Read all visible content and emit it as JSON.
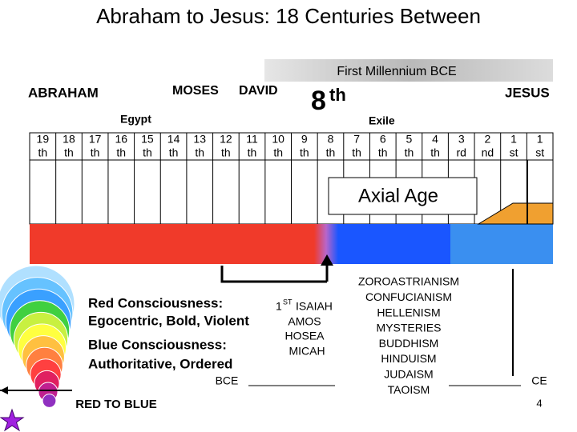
{
  "title": "Abraham to Jesus: 18 Centuries Between",
  "banner": "First Millennium BCE",
  "figures": {
    "abraham": "ABRAHAM",
    "moses": "MOSES",
    "david": "DAVID",
    "eighth": {
      "number": "8",
      "suffix": "th"
    },
    "jesus": "JESUS",
    "egypt": "Egypt",
    "exile": "Exile"
  },
  "centuries": [
    {
      "number": "19",
      "suffix": "th"
    },
    {
      "number": "18",
      "suffix": "th"
    },
    {
      "number": "17",
      "suffix": "th"
    },
    {
      "number": "16",
      "suffix": "th"
    },
    {
      "number": "15",
      "suffix": "th"
    },
    {
      "number": "14",
      "suffix": "th"
    },
    {
      "number": "13",
      "suffix": "th"
    },
    {
      "number": "12",
      "suffix": "th"
    },
    {
      "number": "11",
      "suffix": "th"
    },
    {
      "number": "10",
      "suffix": "th"
    },
    {
      "number": "9",
      "suffix": "th"
    },
    {
      "number": "8",
      "suffix": "th"
    },
    {
      "number": "7",
      "suffix": "th"
    },
    {
      "number": "6",
      "suffix": "th"
    },
    {
      "number": "5",
      "suffix": "th"
    },
    {
      "number": "4",
      "suffix": "th"
    },
    {
      "number": "3",
      "suffix": "rd"
    },
    {
      "number": "2",
      "suffix": "nd"
    },
    {
      "number": "1",
      "suffix": "st"
    },
    {
      "number": "1",
      "suffix": "st"
    }
  ],
  "axial_age": "Axial Age",
  "consciousness": [
    "Red Consciousness:",
    "Egocentric, Bold, Violent",
    "Blue Consciousness:",
    "Authoritative, Ordered"
  ],
  "prophets": {
    "isaiah": {
      "number": "1",
      "superscript": "ST",
      "name": "ISAIAH"
    },
    "others": [
      "AMOS",
      "HOSEA",
      "MICAH"
    ]
  },
  "religions": [
    "ZOROASTRIANISM",
    "CONFUCIANISM",
    "HELLENISM",
    "MYSTERIES",
    "BUDDHISM",
    "HINDUISM",
    "JUDAISM",
    "TAOISM"
  ],
  "bce": "BCE",
  "ce": "CE",
  "red_to_blue": "RED TO BLUE",
  "page_number": "4"
}
